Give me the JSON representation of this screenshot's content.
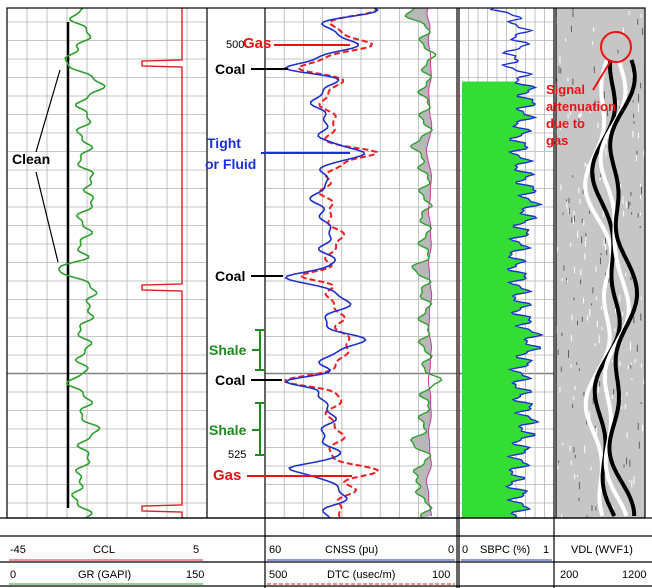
{
  "colors": {
    "gr": "#2ea02e",
    "ccl": "#e02020",
    "cnss": "#1d2fd0",
    "dtc": "#ee2020",
    "sbpc": "#1d2fd0",
    "sbpc_fill": "#33dd33",
    "grid": "#b4b4b4",
    "anno_red": "#ee1111",
    "anno_blue": "#1a2fe0",
    "anno_green": "#1d8a1d"
  },
  "depth_labels": {
    "d500": "500",
    "d525": "525"
  },
  "annotations": {
    "clean": "Clean",
    "gas_top": "Gas",
    "coal_1": "Coal",
    "tight": "Tight",
    "or_fluid": "or Fluid",
    "coal_2": "Coal",
    "shale_1": "Shale",
    "coal_3": "Coal",
    "shale_2": "Shale",
    "gas_bottom": "Gas",
    "signal_1": "Signal",
    "signal_2": "attenuation",
    "signal_3": "due to",
    "signal_4": "gas"
  },
  "headers": {
    "ccl": {
      "min": "-45",
      "name": "CCL",
      "max": "5"
    },
    "gr": {
      "min": "0",
      "name": "GR (GAPI)",
      "max": "150"
    },
    "cnss": {
      "min": "60",
      "name": "CNSS (pu)",
      "max": "0"
    },
    "dtc": {
      "min": "500",
      "name": "DTC (usec/m)",
      "max": "100"
    },
    "sbpc": {
      "min": "0",
      "name": "SBPC (%)",
      "max": "1"
    },
    "vdl": {
      "name": "VDL (WVF1)",
      "min": "200",
      "max": "1200"
    }
  }
}
